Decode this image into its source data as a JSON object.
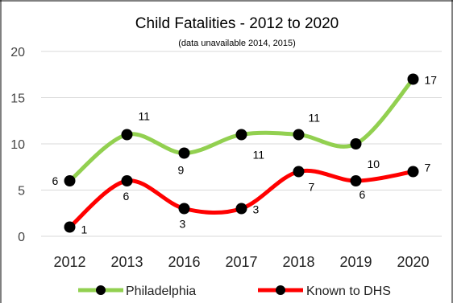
{
  "chart_data": {
    "type": "line",
    "title": "Child Fatalities - 2012 to 2020",
    "subtitle": "(data unavailable 2014, 2015)",
    "categories": [
      "2012",
      "2013",
      "2016",
      "2017",
      "2018",
      "2019",
      "2020"
    ],
    "y_ticks": [
      "0",
      "5",
      "10",
      "15",
      "20"
    ],
    "ylim": [
      0,
      20
    ],
    "grid": "horizontal",
    "legend_position": "bottom",
    "series": [
      {
        "name": "Philadelphia",
        "color": "#92d050",
        "marker_color": "#000000",
        "values": [
          6,
          11,
          9,
          11,
          11,
          10,
          17
        ],
        "labels": [
          "6",
          "11",
          "9",
          "11",
          "11",
          "10",
          "17"
        ]
      },
      {
        "name": "Known to DHS",
        "color": "#ff0000",
        "marker_color": "#000000",
        "values": [
          1,
          6,
          3,
          3,
          7,
          6,
          7
        ],
        "labels": [
          "1",
          "6",
          "3",
          "3",
          "7",
          "6",
          "7"
        ]
      }
    ]
  }
}
